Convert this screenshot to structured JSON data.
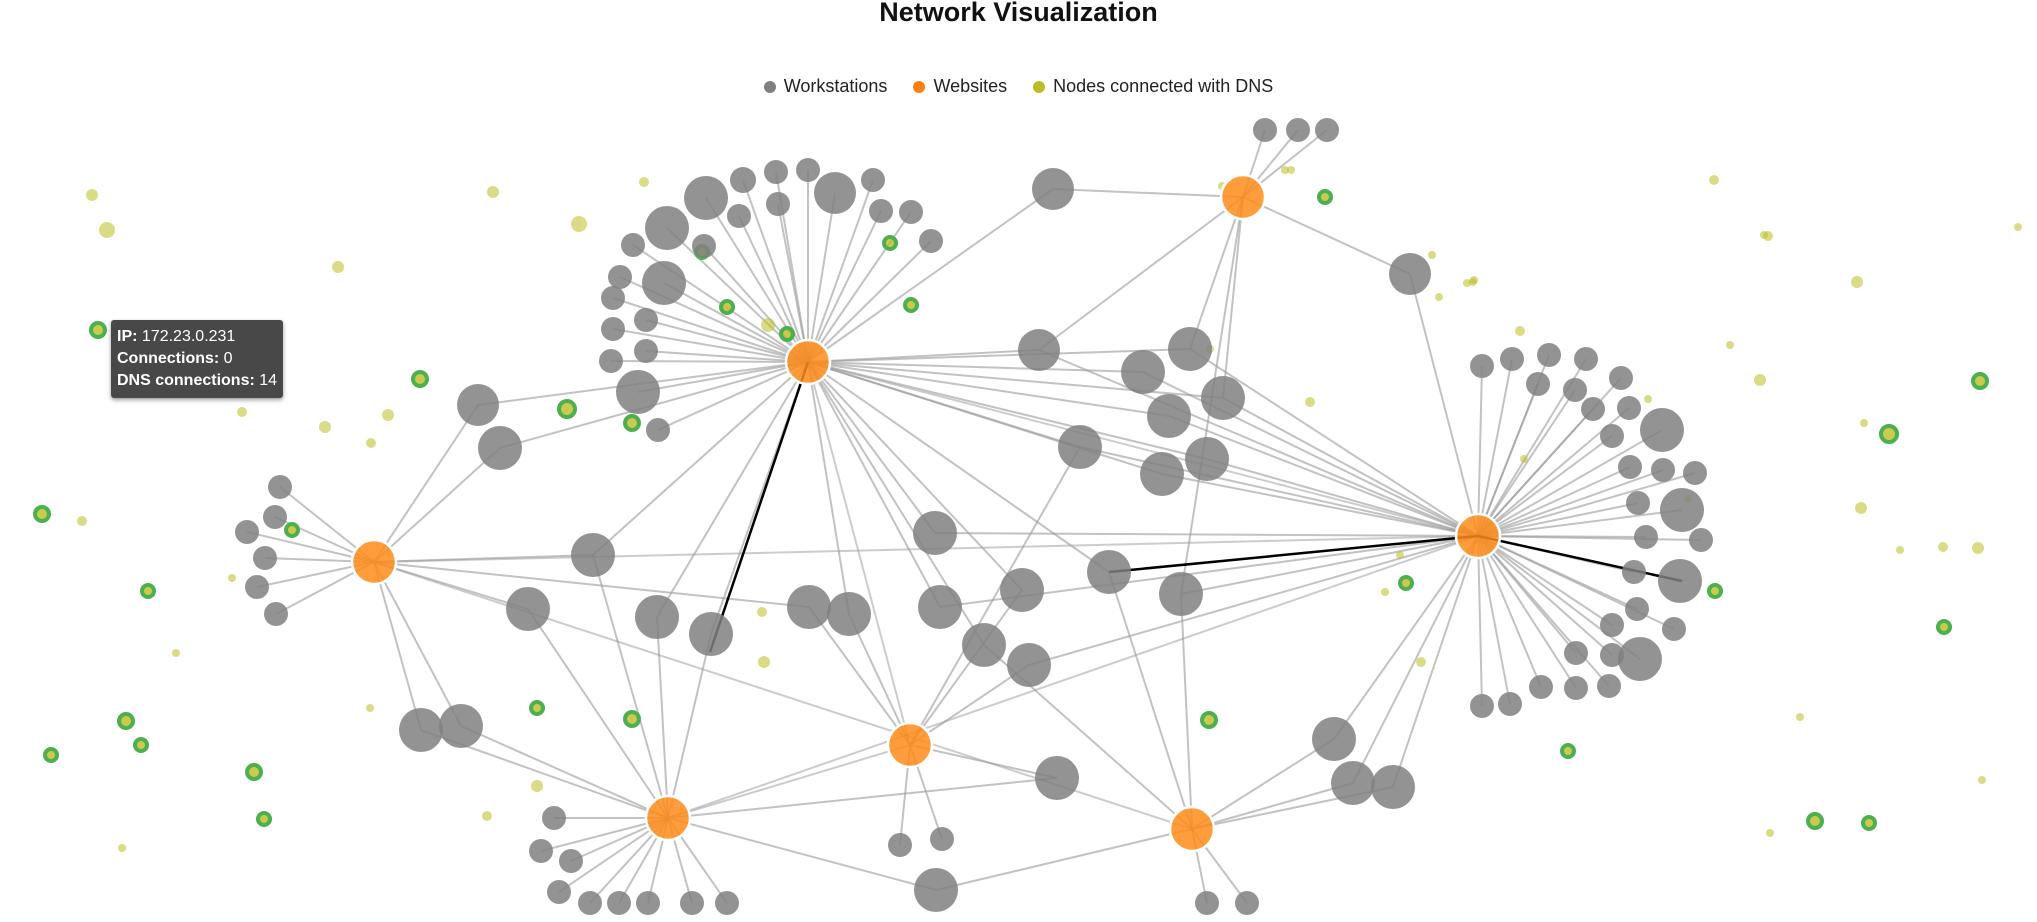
{
  "title": "Network Visualization",
  "legend": [
    {
      "label": "Workstations",
      "color": "#808080"
    },
    {
      "label": "Websites",
      "color": "#ff7f0e"
    },
    {
      "label": "Nodes connected with DNS",
      "color": "#bcbd22"
    }
  ],
  "tooltip": {
    "ip_label": "IP:",
    "ip_value": "172.23.0.231",
    "connections_label": "Connections:",
    "connections_value": "0",
    "dns_label": "DNS connections:",
    "dns_value": "14"
  },
  "colors": {
    "workstation": "#808080",
    "website": "#ff8c1a",
    "dns": "#bcbd22",
    "dns_ring": "#4caf50",
    "link": "#b3b3b3",
    "link_dark": "#000000"
  },
  "graph": {
    "websites": [
      "h1",
      "h2",
      "h3",
      "h4",
      "h5",
      "h6",
      "h7"
    ],
    "workstation_count": 118,
    "dns_node_count": 80,
    "highlighted_link_count": 3
  }
}
